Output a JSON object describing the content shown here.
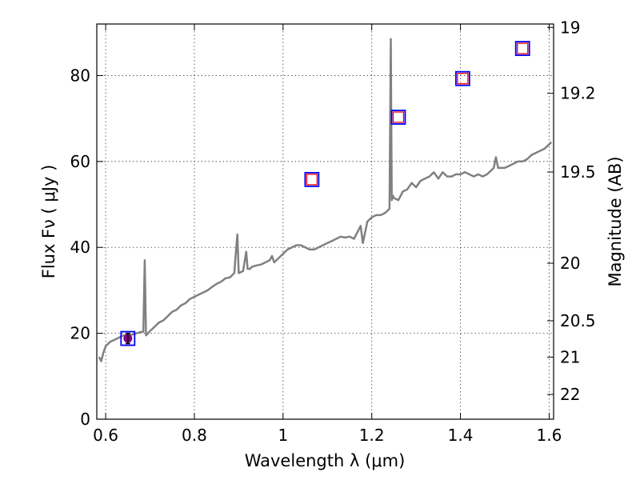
{
  "chart_data": {
    "type": "line",
    "xlabel": "Wavelength  λ (μm)",
    "ylabel": "Flux  Fν  ( μJy )",
    "y2label": "Magnitude (AB)",
    "xlim": [
      0.58,
      1.61
    ],
    "ylim": [
      0,
      92
    ],
    "grid": true,
    "x_ticks": [
      0.6,
      0.8,
      1.0,
      1.2,
      1.4,
      1.6
    ],
    "x_tick_labels": [
      "0.6",
      "0.8",
      "1",
      "1.2",
      "1.4",
      "1.6"
    ],
    "y_ticks": [
      0,
      20,
      40,
      60,
      80
    ],
    "y_tick_labels": [
      "0",
      "20",
      "40",
      "60",
      "80"
    ],
    "mag_ticks": [
      19,
      19.2,
      19.5,
      20,
      20.5,
      21,
      22
    ],
    "mag_tick_labels": [
      "19",
      "19.2",
      "19.5",
      "20",
      "20.5",
      "21",
      "22"
    ],
    "spectrum": {
      "color": "#808080",
      "x": [
        0.585,
        0.59,
        0.595,
        0.6,
        0.61,
        0.62,
        0.63,
        0.64,
        0.65,
        0.66,
        0.67,
        0.68,
        0.685,
        0.688,
        0.691,
        0.7,
        0.71,
        0.72,
        0.73,
        0.74,
        0.75,
        0.76,
        0.77,
        0.78,
        0.79,
        0.8,
        0.81,
        0.82,
        0.83,
        0.84,
        0.85,
        0.86,
        0.87,
        0.88,
        0.89,
        0.893,
        0.897,
        0.9,
        0.91,
        0.917,
        0.92,
        0.925,
        0.93,
        0.94,
        0.95,
        0.96,
        0.97,
        0.975,
        0.98,
        0.99,
        1.0,
        1.01,
        1.02,
        1.03,
        1.04,
        1.05,
        1.06,
        1.07,
        1.08,
        1.09,
        1.1,
        1.11,
        1.12,
        1.13,
        1.14,
        1.15,
        1.16,
        1.17,
        1.175,
        1.18,
        1.19,
        1.2,
        1.21,
        1.22,
        1.23,
        1.24,
        1.243,
        1.245,
        1.248,
        1.25,
        1.26,
        1.27,
        1.28,
        1.29,
        1.3,
        1.31,
        1.32,
        1.33,
        1.34,
        1.35,
        1.36,
        1.37,
        1.38,
        1.39,
        1.4,
        1.41,
        1.42,
        1.43,
        1.44,
        1.45,
        1.46,
        1.47,
        1.475,
        1.48,
        1.485,
        1.49,
        1.5,
        1.51,
        1.52,
        1.53,
        1.54,
        1.55,
        1.56,
        1.57,
        1.58,
        1.59,
        1.6,
        1.605
      ],
      "y": [
        14.5,
        13.5,
        15.5,
        17,
        18,
        18.5,
        19,
        19.5,
        19.6,
        19.7,
        20,
        20.3,
        20.4,
        37,
        19.5,
        20.5,
        21.5,
        22.5,
        23,
        24,
        25,
        25.5,
        26.5,
        27,
        28,
        28.5,
        29,
        29.5,
        30,
        30.8,
        31.5,
        32,
        32.8,
        33,
        34,
        38,
        43,
        34,
        34.5,
        39,
        35,
        35,
        35.5,
        35.8,
        36,
        36.5,
        37,
        38,
        36.5,
        37.5,
        38.5,
        39.5,
        40,
        40.5,
        40.5,
        40,
        39.5,
        39.5,
        40,
        40.5,
        41,
        41.5,
        42,
        42.5,
        42.3,
        42.5,
        42,
        44,
        45,
        41,
        46,
        47,
        47.5,
        47.5,
        48,
        49,
        88.5,
        51,
        52,
        51.5,
        51,
        53,
        53.5,
        55,
        54,
        55.5,
        56,
        56.5,
        57.5,
        56,
        57.5,
        56.5,
        56.5,
        57,
        57,
        57.5,
        57,
        56.5,
        57,
        56.5,
        57,
        58,
        58.5,
        61,
        58.5,
        58.5,
        58.5,
        59,
        59.5,
        60,
        60,
        60.5,
        61.5,
        62,
        62.5,
        63,
        64,
        64.5
      ]
    },
    "photometry": {
      "edge_color": "#0000ff",
      "face_color": "#ff0000",
      "points": [
        {
          "x": 0.65,
          "y": 18.8,
          "err": 1.2
        },
        {
          "x": 1.065,
          "y": 55.8
        },
        {
          "x": 1.26,
          "y": 70.3
        },
        {
          "x": 1.405,
          "y": 79.3
        },
        {
          "x": 1.54,
          "y": 86.3
        }
      ],
      "first_point_marker_color": "#800080"
    }
  }
}
